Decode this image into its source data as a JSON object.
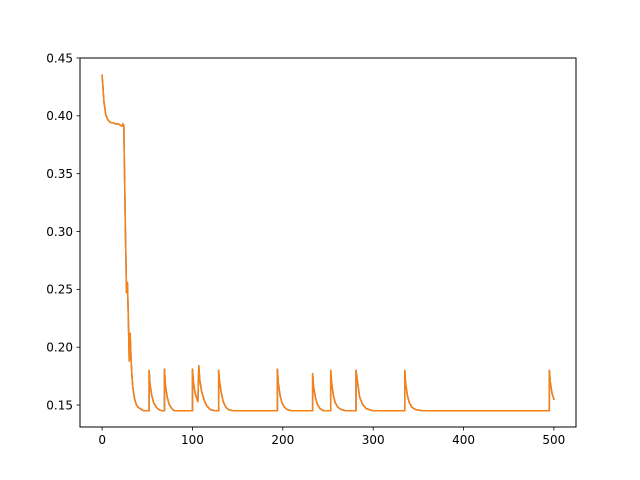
{
  "chart_data": {
    "type": "line",
    "title": "",
    "xlabel": "",
    "ylabel": "",
    "xlim": [
      -24.5,
      524.5
    ],
    "ylim": [
      0.131,
      0.45
    ],
    "x_ticks": [
      0,
      100,
      200,
      300,
      400,
      500
    ],
    "y_ticks": [
      0.15,
      0.2,
      0.25,
      0.3,
      0.35,
      0.4,
      0.45
    ],
    "y_tick_decimals": 2,
    "grid": false,
    "legend": "none",
    "series": [
      {
        "color": "#1f77b4",
        "baseline": 0.145,
        "x": [
          0,
          2,
          4,
          6,
          8,
          10,
          12,
          15,
          18,
          20,
          22,
          23,
          24,
          25,
          26,
          27,
          28,
          29,
          30,
          31,
          32,
          33,
          34,
          36,
          38,
          40,
          42,
          44,
          46,
          48,
          51,
          52,
          53,
          55,
          57,
          60,
          63,
          66,
          68,
          69,
          70,
          72,
          74,
          77,
          80,
          85,
          90,
          95,
          99,
          100,
          101,
          103,
          105,
          106,
          107,
          108,
          110,
          113,
          116,
          120,
          125,
          128,
          129,
          130,
          132,
          134,
          137,
          140,
          145,
          150,
          160,
          170,
          180,
          190,
          193,
          194,
          195,
          197,
          199,
          202,
          205,
          210,
          220,
          230,
          232,
          233,
          234,
          236,
          238,
          241,
          245,
          250,
          252,
          253,
          254,
          256,
          258,
          261,
          265,
          270,
          275,
          279,
          280,
          281,
          283,
          285,
          288,
          292,
          300,
          310,
          320,
          330,
          334,
          335,
          336,
          338,
          340,
          343,
          347,
          355,
          370,
          400,
          430,
          460,
          480,
          493,
          494,
          495,
          496,
          498,
          500
        ],
        "y": [
          0.435,
          0.412,
          0.401,
          0.397,
          0.395,
          0.394,
          0.394,
          0.393,
          0.393,
          0.392,
          0.391,
          0.393,
          0.392,
          0.34,
          0.29,
          0.247,
          0.256,
          0.225,
          0.188,
          0.212,
          0.19,
          0.175,
          0.165,
          0.155,
          0.15,
          0.148,
          0.147,
          0.146,
          0.145,
          0.145,
          0.145,
          0.18,
          0.168,
          0.158,
          0.152,
          0.148,
          0.146,
          0.145,
          0.145,
          0.181,
          0.168,
          0.157,
          0.151,
          0.147,
          0.145,
          0.145,
          0.145,
          0.145,
          0.145,
          0.181,
          0.17,
          0.16,
          0.155,
          0.153,
          0.184,
          0.172,
          0.162,
          0.154,
          0.149,
          0.146,
          0.145,
          0.145,
          0.18,
          0.17,
          0.16,
          0.153,
          0.148,
          0.146,
          0.145,
          0.145,
          0.145,
          0.145,
          0.145,
          0.145,
          0.145,
          0.181,
          0.169,
          0.158,
          0.152,
          0.148,
          0.146,
          0.145,
          0.145,
          0.145,
          0.145,
          0.177,
          0.166,
          0.157,
          0.151,
          0.147,
          0.145,
          0.145,
          0.145,
          0.18,
          0.169,
          0.158,
          0.152,
          0.148,
          0.146,
          0.145,
          0.145,
          0.145,
          0.145,
          0.18,
          0.168,
          0.157,
          0.151,
          0.147,
          0.145,
          0.145,
          0.145,
          0.145,
          0.145,
          0.18,
          0.168,
          0.158,
          0.152,
          0.148,
          0.146,
          0.145,
          0.145,
          0.145,
          0.145,
          0.145,
          0.145,
          0.145,
          0.145,
          0.18,
          0.17,
          0.16,
          0.155
        ]
      },
      {
        "color": "#ff7f0e",
        "baseline": 0.145,
        "x": [
          0,
          2,
          4,
          6,
          8,
          10,
          12,
          15,
          18,
          20,
          22,
          23,
          24,
          25,
          26,
          27,
          28,
          29,
          30,
          31,
          32,
          33,
          34,
          36,
          38,
          40,
          42,
          44,
          46,
          48,
          51,
          52,
          53,
          55,
          57,
          60,
          63,
          66,
          68,
          69,
          70,
          72,
          74,
          77,
          80,
          85,
          90,
          95,
          99,
          100,
          101,
          103,
          105,
          106,
          107,
          108,
          110,
          113,
          116,
          120,
          125,
          128,
          129,
          130,
          132,
          134,
          137,
          140,
          145,
          150,
          160,
          170,
          180,
          190,
          193,
          194,
          195,
          197,
          199,
          202,
          205,
          210,
          220,
          230,
          232,
          233,
          234,
          236,
          238,
          241,
          245,
          250,
          252,
          253,
          254,
          256,
          258,
          261,
          265,
          270,
          275,
          279,
          280,
          281,
          283,
          285,
          288,
          292,
          300,
          310,
          320,
          330,
          334,
          335,
          336,
          338,
          340,
          343,
          347,
          355,
          370,
          400,
          430,
          460,
          480,
          493,
          494,
          495,
          496,
          498,
          500
        ],
        "y": [
          0.435,
          0.412,
          0.401,
          0.397,
          0.395,
          0.394,
          0.394,
          0.393,
          0.393,
          0.392,
          0.391,
          0.393,
          0.392,
          0.34,
          0.29,
          0.247,
          0.256,
          0.225,
          0.188,
          0.212,
          0.19,
          0.175,
          0.165,
          0.155,
          0.15,
          0.148,
          0.147,
          0.146,
          0.145,
          0.145,
          0.145,
          0.18,
          0.168,
          0.158,
          0.152,
          0.148,
          0.146,
          0.145,
          0.145,
          0.181,
          0.168,
          0.157,
          0.151,
          0.147,
          0.145,
          0.145,
          0.145,
          0.145,
          0.145,
          0.181,
          0.17,
          0.16,
          0.155,
          0.153,
          0.184,
          0.172,
          0.162,
          0.154,
          0.149,
          0.146,
          0.145,
          0.145,
          0.18,
          0.17,
          0.16,
          0.153,
          0.148,
          0.146,
          0.145,
          0.145,
          0.145,
          0.145,
          0.145,
          0.145,
          0.145,
          0.181,
          0.169,
          0.158,
          0.152,
          0.148,
          0.146,
          0.145,
          0.145,
          0.145,
          0.145,
          0.177,
          0.166,
          0.157,
          0.151,
          0.147,
          0.145,
          0.145,
          0.145,
          0.18,
          0.169,
          0.158,
          0.152,
          0.148,
          0.146,
          0.145,
          0.145,
          0.145,
          0.145,
          0.18,
          0.168,
          0.157,
          0.151,
          0.147,
          0.145,
          0.145,
          0.145,
          0.145,
          0.145,
          0.18,
          0.168,
          0.158,
          0.152,
          0.148,
          0.146,
          0.145,
          0.145,
          0.145,
          0.145,
          0.145,
          0.145,
          0.145,
          0.145,
          0.18,
          0.17,
          0.16,
          0.155
        ]
      }
    ]
  }
}
